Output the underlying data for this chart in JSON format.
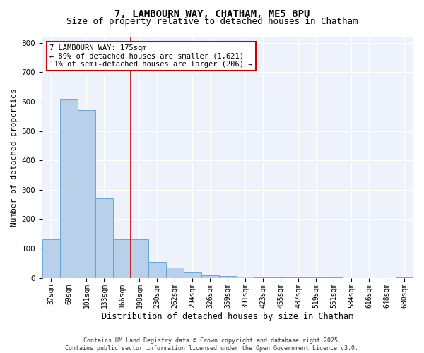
{
  "title1": "7, LAMBOURN WAY, CHATHAM, ME5 8PU",
  "title2": "Size of property relative to detached houses in Chatham",
  "xlabel": "Distribution of detached houses by size in Chatham",
  "ylabel": "Number of detached properties",
  "categories": [
    "37sqm",
    "69sqm",
    "101sqm",
    "133sqm",
    "166sqm",
    "198sqm",
    "230sqm",
    "262sqm",
    "294sqm",
    "326sqm",
    "359sqm",
    "391sqm",
    "423sqm",
    "455sqm",
    "487sqm",
    "519sqm",
    "551sqm",
    "584sqm",
    "616sqm",
    "648sqm",
    "680sqm"
  ],
  "values": [
    132,
    610,
    570,
    270,
    130,
    130,
    55,
    35,
    20,
    8,
    6,
    3,
    2,
    2,
    1,
    1,
    1,
    0,
    0,
    0,
    2
  ],
  "bar_color": "#b8d0ea",
  "bar_edge_color": "#5a9fd4",
  "vline_color": "#cc0000",
  "annotation_text": "7 LAMBOURN WAY: 175sqm\n← 89% of detached houses are smaller (1,621)\n11% of semi-detached houses are larger (206) →",
  "annotation_box_color": "#cc0000",
  "ylim": [
    0,
    820
  ],
  "yticks": [
    0,
    100,
    200,
    300,
    400,
    500,
    600,
    700,
    800
  ],
  "bg_color": "#eef2fb",
  "footer": "Contains HM Land Registry data © Crown copyright and database right 2025.\nContains public sector information licensed under the Open Government Licence v3.0.",
  "title_fontsize": 10,
  "subtitle_fontsize": 9,
  "tick_fontsize": 7,
  "ylabel_fontsize": 8,
  "xlabel_fontsize": 8.5,
  "footer_fontsize": 6
}
